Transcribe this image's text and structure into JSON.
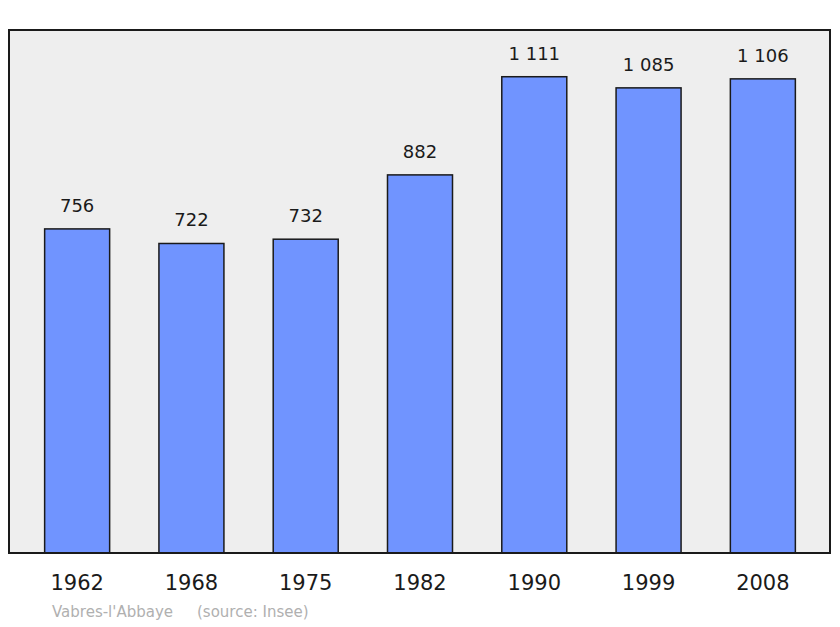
{
  "chart_data": {
    "type": "bar",
    "categories": [
      "1962",
      "1968",
      "1975",
      "1982",
      "1990",
      "1999",
      "2008"
    ],
    "values": [
      756,
      722,
      732,
      882,
      1111,
      1085,
      1106
    ],
    "value_labels": [
      "756",
      "722",
      "732",
      "882",
      "1 111",
      "1 085",
      "1 106"
    ],
    "color": "#7094ff",
    "ylim": [
      0,
      1220
    ],
    "data_labels": true,
    "tick_labels": "x",
    "grid": false,
    "annotations": [
      "Vabres-l'Abbaye",
      "(source: Insee)"
    ]
  }
}
